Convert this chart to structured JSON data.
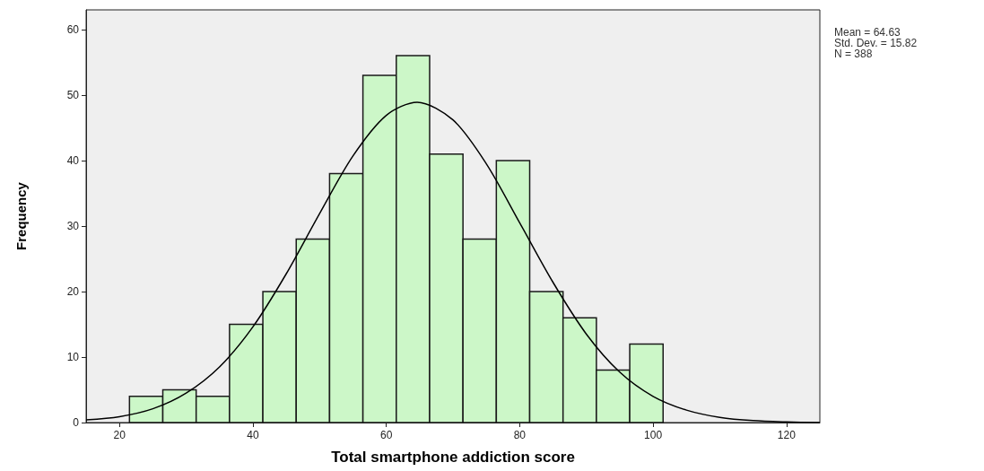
{
  "chart_data": {
    "type": "histogram",
    "xlabel": "Total smartphone addiction score",
    "ylabel": "Frequency",
    "annotations": [
      "Mean = 64.63",
      "Std. Dev. = 15.82",
      "N = 388"
    ],
    "bins": [
      21.5,
      26.5,
      31.5,
      36.5,
      41.5,
      46.5,
      51.5,
      56.5,
      61.5,
      66.5,
      71.5,
      76.5,
      81.5,
      86.5,
      91.5,
      96.5,
      101.5
    ],
    "values": [
      4,
      5,
      4,
      15,
      20,
      28,
      38,
      53,
      56,
      41,
      28,
      40,
      20,
      16,
      8,
      12
    ],
    "color": "#ccf7c8",
    "series": [
      {
        "type": "line",
        "color": "#000000",
        "x": [
          15,
          20,
          25,
          30,
          35,
          40,
          45,
          50,
          55,
          60,
          64.63,
          70,
          75,
          80,
          85,
          90,
          95,
          100,
          105,
          110,
          115,
          120,
          125
        ],
        "values": [
          0.4,
          0.9,
          2.1,
          4.5,
          8.5,
          14.6,
          22.7,
          31.9,
          40.7,
          46.9,
          48.9,
          46.2,
          39.5,
          30.5,
          21.4,
          13.5,
          7.7,
          4.0,
          1.9,
          0.8,
          0.3,
          0.1,
          0.0
        ]
      }
    ],
    "xlim": [
      15,
      125
    ],
    "xticks": [
      20,
      40,
      60,
      80,
      100,
      120
    ],
    "ylim": [
      0,
      63
    ],
    "yticks": [
      0,
      10,
      20,
      30,
      40,
      50,
      60
    ],
    "grid": false,
    "marker": "none",
    "line_style": "solid"
  }
}
